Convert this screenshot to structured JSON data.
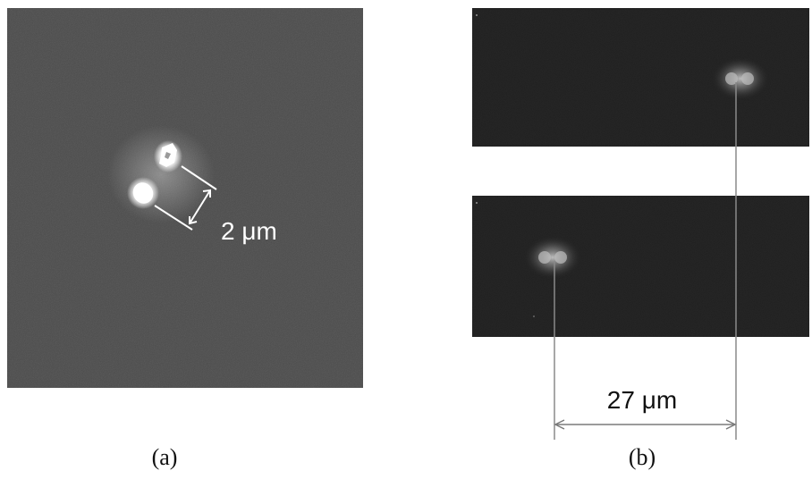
{
  "panel_a": {
    "scale_label": "2 μm",
    "caption": "(a)"
  },
  "panel_b": {
    "scale_label": "27 μm",
    "caption": "(b)"
  }
}
